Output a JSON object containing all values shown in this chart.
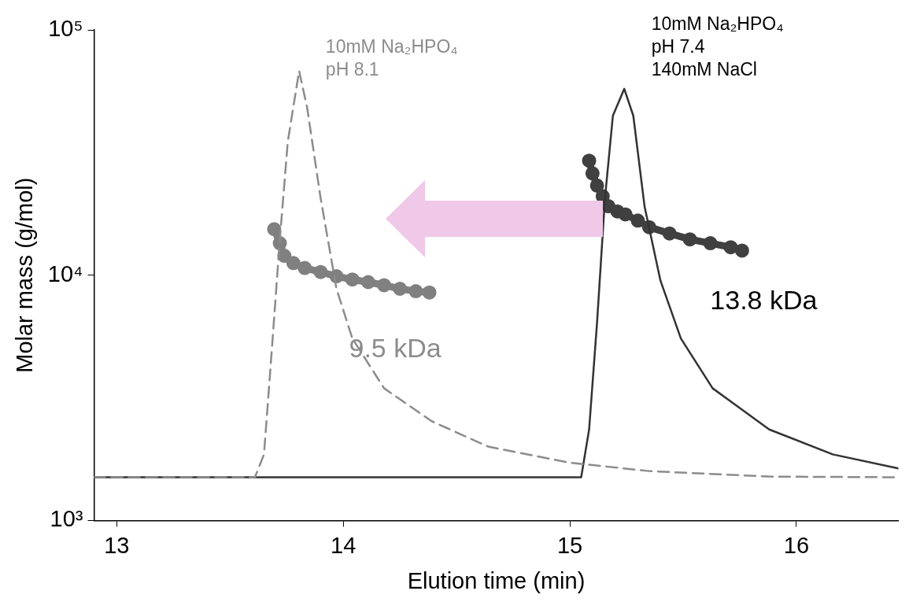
{
  "chart_data": {
    "type": "line",
    "xlabel": "Elution time (min)",
    "ylabel": "Molar mass (g/mol)",
    "xlim": [
      12.9,
      16.45
    ],
    "xticks": [
      13,
      14,
      15,
      16
    ],
    "ylim": [
      1000,
      100000
    ],
    "yticks": [
      {
        "value": 1000,
        "label": "10³"
      },
      {
        "value": 10000,
        "label": "10⁴"
      },
      {
        "value": 100000,
        "label": "10⁵"
      }
    ],
    "log": "y",
    "grid": false,
    "legend": false,
    "series": [
      {
        "color": "#8c8c8c",
        "line_style": "dashed",
        "marker": "none",
        "x": [
          12.9,
          13.61,
          13.65,
          13.68,
          13.72,
          13.755,
          13.805,
          13.84,
          13.9,
          13.97,
          14.04,
          14.18,
          14.39,
          14.64,
          15.0,
          15.35,
          15.88,
          16.45
        ],
        "values": [
          1500,
          1500,
          1860,
          4350,
          14000,
          35000,
          68000,
          48500,
          20600,
          8800,
          5520,
          3460,
          2540,
          2000,
          1720,
          1590,
          1510,
          1500
        ]
      },
      {
        "color": "#333333",
        "line_style": "solid",
        "marker": "none",
        "x": [
          12.9,
          15.05,
          15.085,
          15.12,
          15.155,
          15.19,
          15.24,
          15.28,
          15.33,
          15.4,
          15.49,
          15.63,
          15.88,
          16.16,
          16.45
        ],
        "values": [
          1500,
          1500,
          2350,
          6400,
          20600,
          44700,
          57500,
          44700,
          19000,
          9500,
          5520,
          3460,
          2350,
          1860,
          1630
        ]
      },
      {
        "type": "line",
        "color": "#808080",
        "marker": "circle",
        "line_style": "solid",
        "x": [
          13.695,
          13.72,
          13.74,
          13.78,
          13.83,
          13.9,
          13.97,
          14.04,
          14.11,
          14.18,
          14.25,
          14.32,
          14.38
        ],
        "values": [
          15400,
          13500,
          12000,
          11200,
          10700,
          10300,
          9900,
          9600,
          9370,
          9100,
          8800,
          8600,
          8500
        ]
      },
      {
        "type": "line",
        "color": "#404040",
        "marker": "circle",
        "line_style": "solid",
        "x": [
          15.085,
          15.1,
          15.12,
          15.145,
          15.17,
          15.21,
          15.245,
          15.3,
          15.35,
          15.44,
          15.53,
          15.62,
          15.71,
          15.76
        ],
        "values": [
          29300,
          26000,
          23200,
          21000,
          19100,
          18200,
          17700,
          16700,
          15700,
          14800,
          14000,
          13500,
          13000,
          12600
        ]
      }
    ],
    "annotations": [
      "10mM Na₂HPO₄\npH 8.1",
      "10mM Na₂HPO₄\npH 7.4\n140mM NaCl",
      "9.5 kDa",
      "13.8 kDa"
    ]
  }
}
